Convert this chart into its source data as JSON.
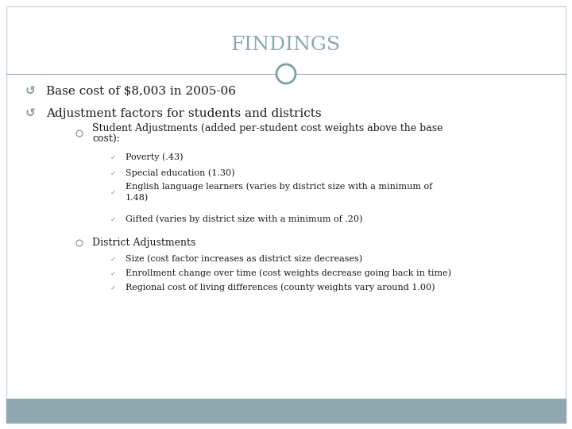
{
  "title": "FINDINGS",
  "title_color": "#8aa8b2",
  "title_fontsize": 18,
  "background_color": "#ffffff",
  "footer_color": "#8fa8b0",
  "divider_color": "#8fa8b0",
  "circle_color": "#7a9faa",
  "text_color": "#1a1a1a",
  "bullet1": "Base cost of $8,003 in 2005-06",
  "bullet2": "Adjustment factors for students and districts",
  "sub1_header_line1": "Student Adjustments (added per-student cost weights above the base",
  "sub1_header_line2": "cost):",
  "sub1_items": [
    "Poverty (.43)",
    "Special education (1.30)",
    "English language learners (varies by district size with a minimum of\n1.48)",
    "Gifted (varies by district size with a minimum of .20)"
  ],
  "sub2_header": "District Adjustments",
  "sub2_items": [
    "Size (cost factor increases as district size decreases)",
    "Enrollment change over time (cost weights decrease going back in time)",
    "Regional cost of living differences (county weights vary around 1.00)"
  ],
  "main_bullet_fontsize": 11,
  "sub_header_fontsize": 9,
  "sub_item_fontsize": 8,
  "bullet_symbol_color": "#7a9faa",
  "circle_bullet_color": "#888888",
  "level3_bullet_color": "#888888",
  "border_color": "#c8d8dc"
}
